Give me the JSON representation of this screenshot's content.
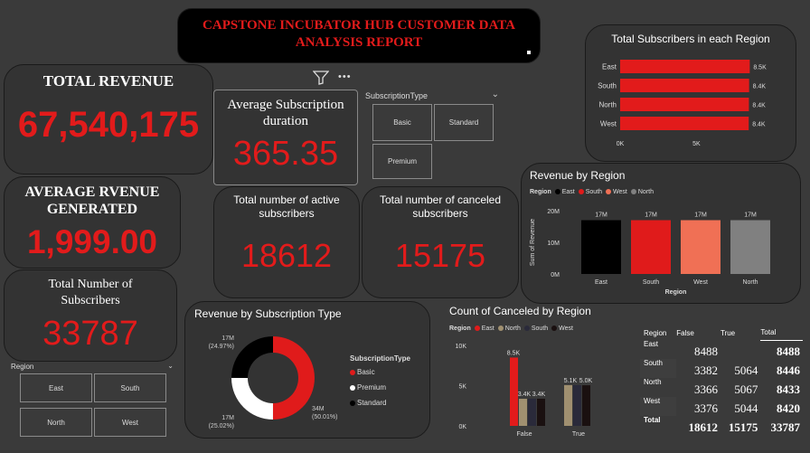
{
  "header": {
    "title_line1": "CAPSTONE INCUBATOR HUB CUSTOMER DATA",
    "title_line2": "ANALYSIS REPORT"
  },
  "kpis": {
    "total_revenue": {
      "label": "TOTAL REVENUE",
      "value": "67,540,175"
    },
    "avg_revenue": {
      "label_line1": "AVERAGE RVENUE",
      "label_line2": "GENERATED",
      "value": "1,999.00"
    },
    "total_subscribers": {
      "label_line1": "Total Number of",
      "label_line2": "Subscribers",
      "value": "33787"
    },
    "avg_duration": {
      "label_line1": "Average Subscription",
      "label_line2": "duration",
      "value": "365.35"
    },
    "active": {
      "label_line1": "Total number of active",
      "label_line2": "subscribers",
      "value": "18612"
    },
    "canceled": {
      "label_line1": "Total number of canceled",
      "label_line2": "subscribers",
      "value": "15175"
    }
  },
  "toolbar": {
    "filter_icon": "filter-icon",
    "more_icon": "more-icon",
    "more_label": "•••"
  },
  "sub_type_slicer": {
    "title": "SubscriptionType",
    "options": [
      "Basic",
      "Standard",
      "Premium"
    ]
  },
  "region_slicer": {
    "title": "Region",
    "options": [
      "East",
      "South",
      "North",
      "West"
    ]
  },
  "colors": {
    "accent_red": "#e21b1b",
    "east": "#000000",
    "south": "#e01b1b",
    "west": "#f07055",
    "north": "#808080",
    "tan": "#a09070",
    "navy": "#2a2a3a"
  },
  "chart_data": [
    {
      "type": "bar",
      "title": "Total Subscribers in each Region",
      "orientation": "horizontal",
      "categories": [
        "East",
        "South",
        "North",
        "West"
      ],
      "values": [
        8488,
        8446,
        8433,
        8420
      ],
      "data_labels": [
        "8.5K",
        "8.4K",
        "8.4K",
        "8.4K"
      ],
      "x_ticks": [
        "0K",
        "5K"
      ],
      "xlim": [
        0,
        9000
      ]
    },
    {
      "type": "bar",
      "title": "Revenue by Region",
      "legend_title": "Region",
      "categories": [
        "East",
        "South",
        "West",
        "North"
      ],
      "values": [
        17000000,
        17000000,
        17000000,
        17000000
      ],
      "data_labels": [
        "17M",
        "17M",
        "17M",
        "17M"
      ],
      "y_ticks": [
        "20M",
        "10M",
        "0M"
      ],
      "ylim": [
        0,
        20000000
      ],
      "ylabel": "Sum of Revenue",
      "xlabel": "Region"
    },
    {
      "type": "pie",
      "title": "Revenue by Subscription Type",
      "legend_title": "SubscriptionType",
      "legend": [
        "Basic",
        "Premium",
        "Standard"
      ],
      "labels": [
        "34M",
        "17M",
        "17M"
      ],
      "percents": [
        "(50.01%)",
        "(25.02%)",
        "(24.97%)"
      ],
      "values": [
        50.01,
        25.02,
        24.97
      ]
    },
    {
      "type": "bar",
      "title": "Count of Canceled by Region",
      "legend_title": "Region",
      "legend": [
        "East",
        "North",
        "South",
        "West"
      ],
      "categories": [
        "False",
        "True"
      ],
      "series": [
        {
          "name": "East",
          "values": [
            8488,
            0
          ]
        },
        {
          "name": "North",
          "values": [
            3366,
            5067
          ]
        },
        {
          "name": "South",
          "values": [
            3382,
            5064
          ]
        },
        {
          "name": "West",
          "values": [
            3376,
            5044
          ]
        }
      ],
      "data_labels": {
        "False": [
          "8.5K",
          "3.4K",
          "3.4K"
        ],
        "True": [
          "5.1K",
          "5.0K"
        ]
      },
      "y_ticks": [
        "10K",
        "5K",
        "0K"
      ],
      "ylim": [
        0,
        10000
      ]
    }
  ],
  "matrix": {
    "headers": [
      "Region",
      "False",
      "True",
      "Total"
    ],
    "rows": [
      {
        "region": "East",
        "false": "8488",
        "true": "",
        "total": "8488"
      },
      {
        "region": "South",
        "false": "3382",
        "true": "5064",
        "total": "8446"
      },
      {
        "region": "North",
        "false": "3366",
        "true": "5067",
        "total": "8433"
      },
      {
        "region": "West",
        "false": "3376",
        "true": "5044",
        "total": "8420"
      },
      {
        "region": "Total",
        "false": "18612",
        "true": "15175",
        "total": "33787"
      }
    ]
  }
}
